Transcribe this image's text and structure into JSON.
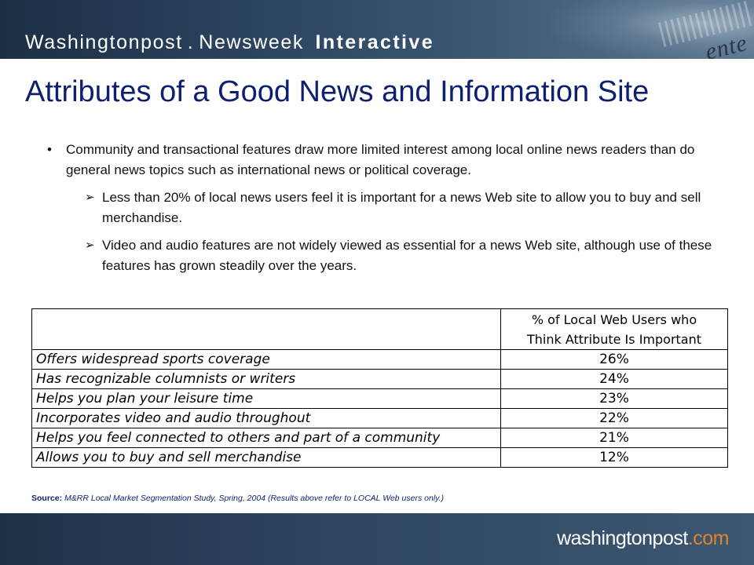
{
  "header": {
    "brand_part1": "Washingtonpost",
    "brand_dot": ".",
    "brand_part2": "Newsweek",
    "brand_part3": "Interactive",
    "ghost_text": "ente"
  },
  "slide": {
    "title": "Attributes of a Good News and Information Site",
    "bullet_main": "Community and transactional features draw more limited interest among local online news readers than do general news topics such as international news or political coverage.",
    "sub_bullets": [
      "Less than 20% of local news users feel it is important for a news Web site to allow you to buy and sell merchandise.",
      "Video and audio features are not widely viewed as essential for a news Web site, although use of these features has grown steadily over the years."
    ]
  },
  "table": {
    "col_header_line1": "% of Local Web Users who",
    "col_header_line2": "Think Attribute Is Important",
    "rows": [
      {
        "attribute": "Offers widespread sports coverage",
        "value": "26%"
      },
      {
        "attribute": "Has recognizable columnists or writers",
        "value": "24%"
      },
      {
        "attribute": "Helps you plan your leisure time",
        "value": "23%"
      },
      {
        "attribute": "Incorporates video and audio throughout",
        "value": "22%"
      },
      {
        "attribute": "Helps you feel connected to others and part of a community",
        "value": "21%"
      },
      {
        "attribute": "Allows you to buy and sell merchandise",
        "value": "12%"
      }
    ]
  },
  "source": {
    "label": "Source:",
    "text": "M&RR Local Market Segmentation Study, Spring, 2004 (Results above refer to LOCAL Web users only.)"
  },
  "footer": {
    "site_main": "washingtonpost",
    "site_tld": ".com"
  },
  "colors": {
    "title": "#0d1f6e",
    "banner": "#2c4560",
    "footer_tld": "#e0832a"
  }
}
